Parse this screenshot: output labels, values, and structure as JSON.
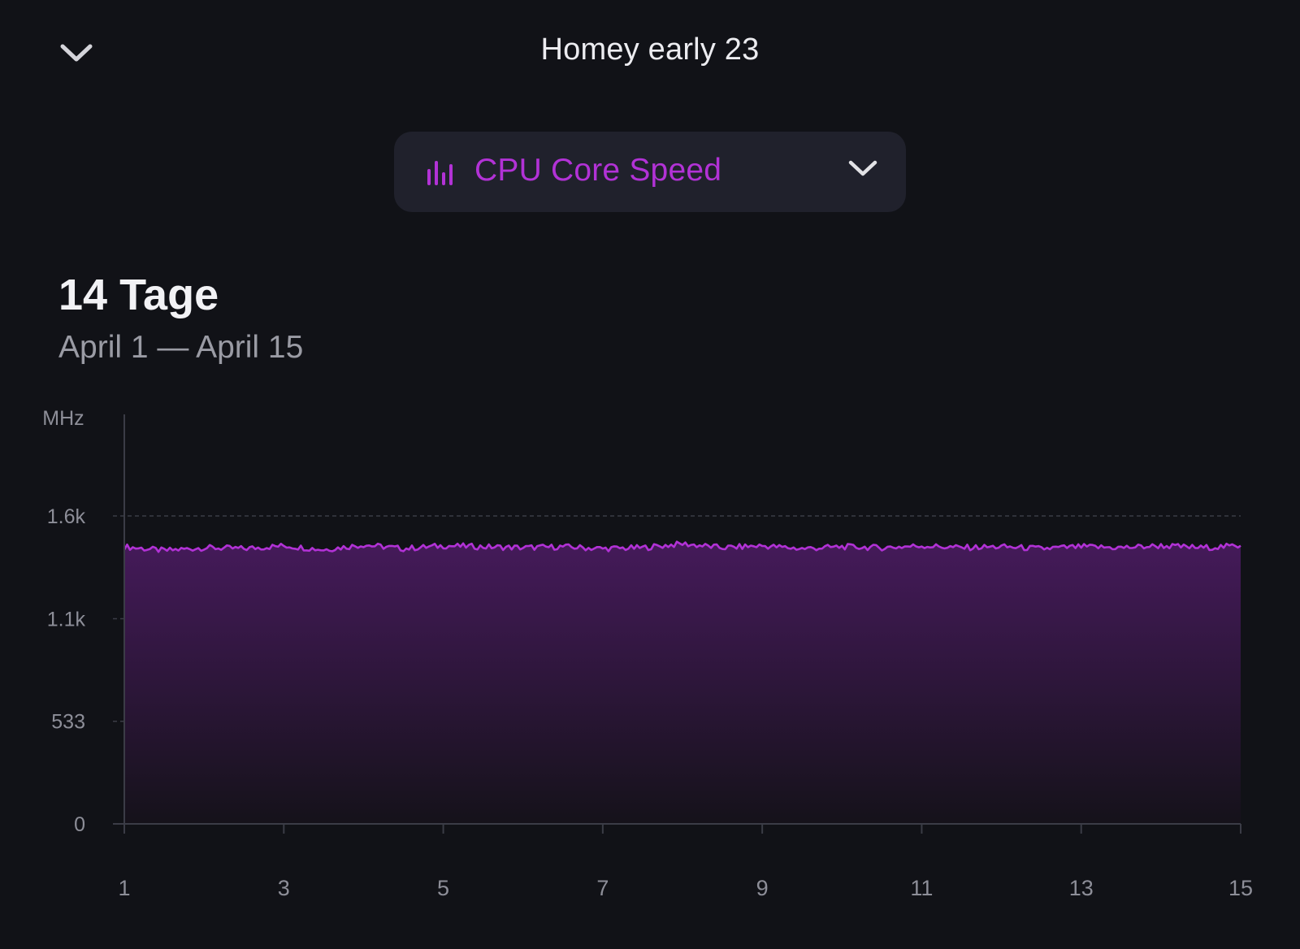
{
  "header": {
    "title": "Homey early 23",
    "collapse_icon": "chevron-down-icon"
  },
  "metric_selector": {
    "label": "CPU Core Speed",
    "icon": "bar-chart-icon",
    "dropdown_icon": "chevron-down-icon",
    "color": "#b232d6"
  },
  "range": {
    "title": "14 Tage",
    "dates": "April 1 — April 15"
  },
  "chart_data": {
    "type": "area",
    "title": "",
    "xlabel": "",
    "ylabel": "MHz",
    "x_ticks": [
      1,
      3,
      5,
      7,
      9,
      11,
      13,
      15
    ],
    "y_ticks": [
      {
        "value": 0,
        "label": "0"
      },
      {
        "value": 533,
        "label": "533"
      },
      {
        "value": 1066,
        "label": "1.1k"
      },
      {
        "value": 1600,
        "label": "1.6k"
      }
    ],
    "xlim": [
      1,
      15
    ],
    "ylim": [
      0,
      2133
    ],
    "grid": true,
    "line_color": "#b232d6",
    "series": [
      {
        "x": [
          1,
          1.5,
          2,
          2.5,
          3,
          3.5,
          4,
          4.5,
          5,
          5.5,
          6,
          6.5,
          7,
          7.5,
          8,
          8.5,
          9,
          9.5,
          10,
          10.5,
          11,
          11.5,
          12,
          12.5,
          13,
          13.5,
          14,
          14.5,
          15
        ],
        "values": [
          1440,
          1420,
          1435,
          1430,
          1445,
          1425,
          1450,
          1430,
          1445,
          1440,
          1435,
          1440,
          1430,
          1435,
          1455,
          1435,
          1445,
          1430,
          1440,
          1435,
          1445,
          1435,
          1440,
          1430,
          1440,
          1435,
          1445,
          1435,
          1445
        ]
      }
    ]
  }
}
